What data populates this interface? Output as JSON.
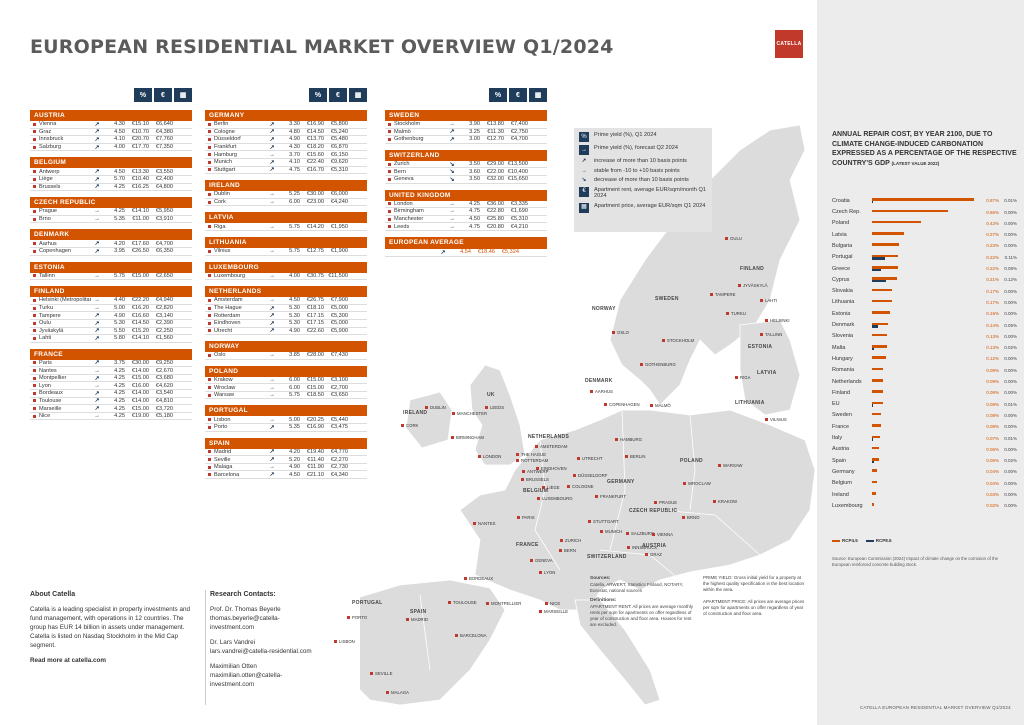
{
  "title": "EUROPEAN RESIDENTIAL MARKET OVERVIEW Q1/2024",
  "logo": "CATELLA",
  "header_icons": [
    "%",
    "€",
    "▦"
  ],
  "columns": [
    [
      {
        "name": "AUSTRIA",
        "rows": [
          [
            "Vienna",
            "↗",
            "4.30",
            "€15.10",
            "€6,640"
          ],
          [
            "Graz",
            "↗",
            "4.50",
            "€10.70",
            "€4,380"
          ],
          [
            "Innsbruck",
            "↗",
            "4.10",
            "€20.70",
            "€7,760"
          ],
          [
            "Salzburg",
            "↗",
            "4.00",
            "€17.70",
            "€7,350"
          ]
        ]
      },
      {
        "name": "BELGIUM",
        "rows": [
          [
            "Antwerp",
            "↗",
            "4.50",
            "€13.30",
            "€3,550"
          ],
          [
            "Liège",
            "↗",
            "5.70",
            "€10.40",
            "€2,400"
          ],
          [
            "Brussels",
            "↗",
            "4.25",
            "€16.25",
            "€4,800"
          ]
        ]
      },
      {
        "name": "CZECH REPUBLIC",
        "rows": [
          [
            "Prague",
            "→",
            "4.25",
            "€14.10",
            "€5,950"
          ],
          [
            "Brno",
            "→",
            "5.35",
            "€11.00",
            "€3,910"
          ]
        ]
      },
      {
        "name": "DENMARK",
        "rows": [
          [
            "Aarhus",
            "↗",
            "4.20",
            "€17.60",
            "€4,700"
          ],
          [
            "Copenhagen",
            "↗",
            "3.95",
            "€26.50",
            "€6,350"
          ]
        ]
      },
      {
        "name": "ESTONIA",
        "rows": [
          [
            "Tallinn",
            "→",
            "5.75",
            "€15.00",
            "€2,650"
          ]
        ]
      },
      {
        "name": "FINLAND",
        "rows": [
          [
            "Helsinki (Metropolitan area)",
            "→",
            "4.40",
            "€22.20",
            "€4,940"
          ],
          [
            "Turku",
            "→",
            "5.00",
            "€16.20",
            "€2,820"
          ],
          [
            "Tampere",
            "↗",
            "4.90",
            "€16.60",
            "€3,140"
          ],
          [
            "Oulu",
            "↗",
            "5.30",
            "€14.50",
            "€2,390"
          ],
          [
            "Jyväskylä",
            "↗",
            "5.50",
            "€15.20",
            "€2,250"
          ],
          [
            "Lahti",
            "↗",
            "5.80",
            "€14.10",
            "€1,560"
          ]
        ]
      },
      {
        "name": "FRANCE",
        "rows": [
          [
            "Paris",
            "↗",
            "3.75",
            "€30.00",
            "€9,250"
          ],
          [
            "Nantes",
            "→",
            "4.25",
            "€14.00",
            "€2,670"
          ],
          [
            "Montpellier",
            "↗",
            "4.25",
            "€15.00",
            "€3,680"
          ],
          [
            "Lyon",
            "→",
            "4.25",
            "€16.00",
            "€4,620"
          ],
          [
            "Bordeaux",
            "↗",
            "4.25",
            "€14.00",
            "€3,540"
          ],
          [
            "Toulouse",
            "↗",
            "4.25",
            "€14.00",
            "€4,810"
          ],
          [
            "Marseille",
            "↗",
            "4.25",
            "€15.00",
            "€3,720"
          ],
          [
            "Nice",
            "→",
            "4.25",
            "€19.00",
            "€5,180"
          ]
        ]
      }
    ],
    [
      {
        "name": "GERMANY",
        "rows": [
          [
            "Berlin",
            "↗",
            "3.30",
            "€16.90",
            "€5,800"
          ],
          [
            "Cologne",
            "↗",
            "4.80",
            "€14.50",
            "€5,240"
          ],
          [
            "Düsseldorf",
            "↗",
            "4.90",
            "€13.70",
            "€5,480"
          ],
          [
            "Frankfurt",
            "↗",
            "4.30",
            "€18.20",
            "€6,870"
          ],
          [
            "Hamburg",
            "→",
            "3.70",
            "€15.60",
            "€6,150"
          ],
          [
            "Munich",
            "↗",
            "4.10",
            "€22.40",
            "€9,620"
          ],
          [
            "Stuttgart",
            "↗",
            "4.75",
            "€16.70",
            "€5,310"
          ]
        ]
      },
      {
        "name": "IRELAND",
        "rows": [
          [
            "Dublin",
            "→",
            "5.25",
            "€30.00",
            "€6,000"
          ],
          [
            "Cork",
            "→",
            "6.00",
            "€23.00",
            "€4,240"
          ]
        ]
      },
      {
        "name": "LATVIA",
        "rows": [
          [
            "Riga",
            "→",
            "5.75",
            "€14.20",
            "€1,950"
          ]
        ]
      },
      {
        "name": "LITHUANIA",
        "rows": [
          [
            "Vilnius",
            "→",
            "5.75",
            "€12.75",
            "€1,900"
          ]
        ]
      },
      {
        "name": "LUXEMBOURG",
        "rows": [
          [
            "Luxembourg",
            "→",
            "4.00",
            "€30.75",
            "€11,500"
          ]
        ]
      },
      {
        "name": "NETHERLANDS",
        "rows": [
          [
            "Amsterdam",
            "→",
            "4.50",
            "€26.75",
            "€7,900"
          ],
          [
            "The Hague",
            "↗",
            "5.30",
            "€18.10",
            "€5,000"
          ],
          [
            "Rotterdam",
            "↗",
            "5.30",
            "€17.15",
            "€5,300"
          ],
          [
            "Eindhoven",
            "↗",
            "5.30",
            "€17.15",
            "€5,000"
          ],
          [
            "Utrecht",
            "↗",
            "4.90",
            "€22.60",
            "€5,900"
          ]
        ]
      },
      {
        "name": "NORWAY",
        "rows": [
          [
            "Oslo",
            "→",
            "3.85",
            "€28.00",
            "€7,430"
          ]
        ]
      },
      {
        "name": "POLAND",
        "rows": [
          [
            "Krakow",
            "→",
            "6.00",
            "€15.00",
            "€3,100"
          ],
          [
            "Wroclaw",
            "→",
            "6.00",
            "€15.00",
            "€2,700"
          ],
          [
            "Warsaw",
            "→",
            "5.75",
            "€18.50",
            "€3,650"
          ]
        ]
      },
      {
        "name": "PORTUGAL",
        "rows": [
          [
            "Lisbon",
            "→",
            "5.00",
            "€20.25",
            "€5,440"
          ],
          [
            "Porto",
            "↗",
            "5.35",
            "€16.90",
            "€3,475"
          ]
        ]
      },
      {
        "name": "SPAIN",
        "rows": [
          [
            "Madrid",
            "↗",
            "4.20",
            "€19.40",
            "€4,770"
          ],
          [
            "Seville",
            "↗",
            "5.20",
            "€11.40",
            "€2,270"
          ],
          [
            "Malaga",
            "→",
            "4.90",
            "€11.90",
            "€2,730"
          ],
          [
            "Barcelona",
            "↗",
            "4.50",
            "€21.10",
            "€4,340"
          ]
        ]
      }
    ],
    [
      {
        "name": "SWEDEN",
        "rows": [
          [
            "Stockholm",
            "→",
            "3.90",
            "€13.80",
            "€7,400"
          ],
          [
            "Malmö",
            "↗",
            "3.25",
            "€11.30",
            "€2,750"
          ],
          [
            "Gothenburg",
            "↗",
            "3.00",
            "€12.70",
            "€4,700"
          ]
        ]
      },
      {
        "name": "SWITZERLAND",
        "rows": [
          [
            "Zurich",
            "↘",
            "3.50",
            "€29.00",
            "€13,500"
          ],
          [
            "Bern",
            "↘",
            "3.60",
            "€22.00",
            "€10,400"
          ],
          [
            "Geneva",
            "↘",
            "3.50",
            "€32.00",
            "€15,650"
          ]
        ]
      },
      {
        "name": "UNITED KINGDOM",
        "rows": [
          [
            "London",
            "→",
            "4.25",
            "€36.00",
            "€3,335"
          ],
          [
            "Birmingham",
            "→",
            "4.75",
            "€22.80",
            "€1,690"
          ],
          [
            "Manchester",
            "→",
            "4.50",
            "€25.80",
            "€5,310"
          ],
          [
            "Leeds",
            "→",
            "4.75",
            "€20.80",
            "€4,210"
          ]
        ]
      }
    ]
  ],
  "european_average": {
    "label": "EUROPEAN AVERAGE",
    "arrow": "↗",
    "yield": "4.54",
    "rent": "€18.46",
    "price": "€5,324"
  },
  "legend": [
    {
      "icon": "%",
      "text": "Prime yield (%), Q1 2024"
    },
    {
      "icon": "→",
      "text": "Prime yield (%), forecast Q2 2024"
    },
    {
      "arrow": "↗",
      "text": "increase of more than 10 basis points"
    },
    {
      "arrow": "→",
      "text": "stable from -10 to +10 basis points"
    },
    {
      "arrow": "↘",
      "text": "decrease of more than 10 basis points"
    },
    {
      "icon": "€",
      "text": "Apartment rent, average EUR/sqm/month Q1 2024"
    },
    {
      "icon": "▦",
      "text": "Apartment price, average EUR/sqm Q1 2024"
    }
  ],
  "map_countries": [
    "FINLAND",
    "SWEDEN",
    "NORWAY",
    "ESTONIA",
    "LATVIA",
    "LITHUANIA",
    "DENMARK",
    "UK",
    "IRELAND",
    "NETHERLANDS",
    "BELGIUM",
    "GERMANY",
    "POLAND",
    "CZECH REPUBLIC",
    "FRANCE",
    "SWITZERLAND",
    "AUSTRIA",
    "PORTUGAL",
    "SPAIN"
  ],
  "map_cities": [
    "OULU",
    "JYVÄSKYLÄ",
    "TAMPERE",
    "LAHTI",
    "TURKU",
    "HELSINKI",
    "TALLINN",
    "OSLO",
    "STOCKHOLM",
    "GOTHENBURG",
    "RIGA",
    "AARHUS",
    "COPENHAGEN",
    "MALMÖ",
    "VILNIUS",
    "DUBLIN",
    "CORK",
    "LEEDS",
    "MANCHESTER",
    "BIRMINGHAM",
    "LONDON",
    "AMSTERDAM",
    "THE HAGUE",
    "ROTTERDAM",
    "UTRECHT",
    "EINDHOVEN",
    "ANTWERP",
    "BRUSSELS",
    "LIÈGE",
    "LUXEMBOURG",
    "DÜSSELDORF",
    "COLOGNE",
    "FRANKFURT",
    "HAMBURG",
    "BERLIN",
    "WARSAW",
    "WROCLAW",
    "KRAKOW",
    "PRAGUE",
    "BRNO",
    "STUTTGART",
    "MUNICH",
    "SALZBURG",
    "VIENNA",
    "INNSBRUCK",
    "GRAZ",
    "PARIS",
    "NANTES",
    "ZURICH",
    "BERN",
    "GENEVA",
    "LYON",
    "BORDEAUX",
    "TOULOUSE",
    "MONTPELLIER",
    "NICE",
    "MARSEILLE",
    "PORTO",
    "LISBON",
    "MADRID",
    "BARCELONA",
    "SEVILLE",
    "MALAGA"
  ],
  "about": {
    "heading": "About Catella",
    "body": "Catella is a leading specialist in property investments and fund management, with operations in 12 countries. The group has EUR 14 billion in assets under management. Catella is listed on Nasdaq Stockholm in the Mid Cap segment.",
    "link": "Read more at catella.com"
  },
  "research": {
    "heading": "Research Contacts:",
    "contacts": [
      [
        "Prof. Dr. Thomas Beyerle",
        "thomas.beyerle@catella-investment.com"
      ],
      [
        "Dr. Lars Vandrei",
        "lars.vandrei@catella-residential.com"
      ],
      [
        "Maximilian Otten",
        "maximilian.otten@catella-investment.com"
      ]
    ]
  },
  "sources": {
    "h1": "Sources:",
    "t1": "Catella, ARWERT, Statistics Finland, NOTARY, Eurostat, national sources",
    "h2": "Definitions:",
    "t2": "APARTMENT RENT: All prices are average monthly rents per sqm for apartments on offer regardless of year of construction and floor area. Houses for rent are excluded."
  },
  "notes": {
    "t1": "PRIME YIELD: Gross initial yield for a property at the highest quality specification in the best location within the area.",
    "t2": "APARTMENT PRICE: All prices are average prices per sqm for apartments on offer regardless of year of construction and floor area."
  },
  "panel": {
    "title": "ANNUAL REPAIR COST, BY YEAR 2100, DUE TO CLIMATE CHANGE-INDUCED CARBONATION EXPRESSED AS A PERCENTAGE OF THE RESPECTIVE COUNTRY'S GDP",
    "subtitle": "(LATEST VALUE 2022)",
    "legend": [
      "RCP4.5",
      "RCP8.5"
    ],
    "source": "Source: European Commission (2024) Impact of climate change on the corrosion of the European reinforced concrete building stock.",
    "footer": "CATELLA EUROPEAN RESIDENTIAL MARKET OVERVIEW Q1/2024"
  },
  "colors": {
    "accent": "#d35400",
    "navy": "#1f3c5a",
    "panel_bg": "#ececec"
  },
  "chart_data": {
    "type": "bar",
    "title": "ANNUAL REPAIR COST, BY YEAR 2100, DUE TO CLIMATE CHANGE-INDUCED CARBONATION EXPRESSED AS A PERCENTAGE OF THE RESPECTIVE COUNTRY'S GDP",
    "categories": [
      "Croatia",
      "Czech Rep.",
      "Poland",
      "Latvia",
      "Bulgaria",
      "Portugal",
      "Greece",
      "Cyprus",
      "Slovakia",
      "Lithuania",
      "Estonia",
      "Denmark",
      "Slovenia",
      "Malta",
      "Hungary",
      "Romania",
      "Netherlands",
      "Finland",
      "EU",
      "Sweden",
      "France",
      "Italy",
      "Austria",
      "Spain",
      "Germany",
      "Belgium",
      "Ireland",
      "Luxembourg"
    ],
    "series": [
      {
        "name": "RCP4.5",
        "values": [
          0.87,
          0.65,
          0.42,
          0.27,
          0.23,
          0.22,
          0.22,
          0.21,
          0.17,
          0.17,
          0.15,
          0.14,
          0.13,
          0.13,
          0.12,
          0.09,
          0.09,
          0.09,
          0.09,
          0.08,
          0.08,
          0.07,
          0.06,
          0.06,
          0.04,
          0.04,
          0.03,
          0.02
        ]
      },
      {
        "name": "RCP8.5",
        "values": [
          0.01,
          0.0,
          0.0,
          0.0,
          0.0,
          0.11,
          0.08,
          0.12,
          0.0,
          0.0,
          0.0,
          0.05,
          0.0,
          0.02,
          0.0,
          0.0,
          0.0,
          0.0,
          0.01,
          0.0,
          0.0,
          0.01,
          0.0,
          0.02,
          0.0,
          0.0,
          0.0,
          0.0
        ]
      }
    ],
    "value_labels_1": [
      "0.87%",
      "0.65%",
      "0.42%",
      "0.27%",
      "0.23%",
      "0.22%",
      "0.22%",
      "0.21%",
      "0.17%",
      "0.17%",
      "0.15%",
      "0.14%",
      "0.13%",
      "0.13%",
      "0.12%",
      "0.09%",
      "0.09%",
      "0.09%",
      "0.09%",
      "0.08%",
      "0.08%",
      "0.07%",
      "0.06%",
      "0.06%",
      "0.04%",
      "0.04%",
      "0.03%",
      "0.02%"
    ],
    "value_labels_2": [
      "0.01%",
      "0.00%",
      "0.00%",
      "0.00%",
      "0.00%",
      "0.11%",
      "0.08%",
      "0.12%",
      "0.00%",
      "0.00%",
      "0.00%",
      "0.05%",
      "0.00%",
      "0.02%",
      "0.00%",
      "0.00%",
      "0.00%",
      "0.00%",
      "0.01%",
      "0.00%",
      "0.00%",
      "0.01%",
      "0.00%",
      "0.02%",
      "0.00%",
      "0.00%",
      "0.00%",
      "0.00%"
    ],
    "ylim": [
      0,
      0.9
    ]
  }
}
